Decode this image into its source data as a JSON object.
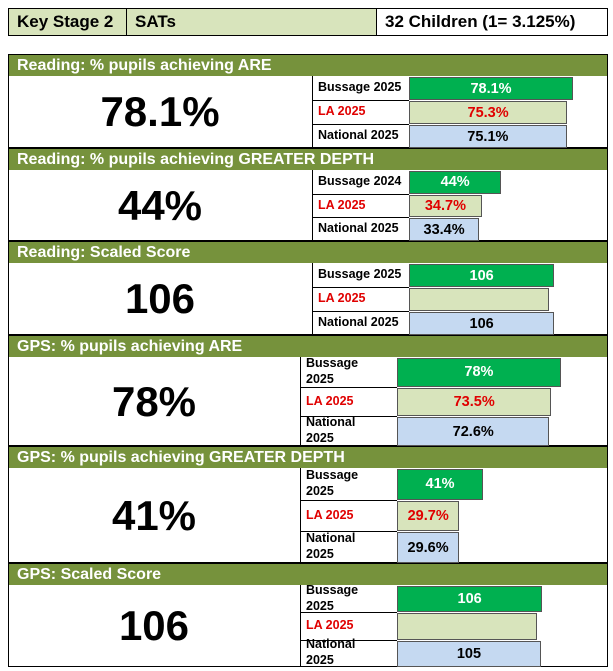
{
  "header": {
    "cells": [
      "Key Stage 2",
      "SATs",
      "32 Children (1= 3.125%)"
    ]
  },
  "sections": [
    {
      "title": "Reading: % pupils achieving ARE",
      "headline": "78.1%",
      "rows": [
        {
          "label": "Bussage 2025",
          "value": 78.1,
          "value_label": "78.1%"
        },
        {
          "label": "LA 2025",
          "value": 75.3,
          "value_label": "75.3%"
        },
        {
          "label": "National 2025",
          "value": 75.1,
          "value_label": "75.1%"
        }
      ]
    },
    {
      "title": "Reading: % pupils achieving GREATER DEPTH",
      "headline": "44%",
      "rows": [
        {
          "label": "Bussage 2024",
          "value": 44,
          "value_label": "44%"
        },
        {
          "label": "LA 2025",
          "value": 34.7,
          "value_label": "34.7%"
        },
        {
          "label": "National 2025",
          "value": 33.4,
          "value_label": "33.4%"
        }
      ]
    },
    {
      "title": "Reading: Scaled Score",
      "headline": "106",
      "rows": [
        {
          "label": "Bussage 2025",
          "value": 106
        },
        {
          "label": "LA 2025",
          "value": null
        },
        {
          "label": "National 2025",
          "value": 106
        }
      ]
    },
    {
      "title": "GPS: % pupils achieving ARE",
      "headline": "78%",
      "rows": [
        {
          "label": "Bussage 2025",
          "value": 78,
          "value_label": "78%"
        },
        {
          "label": "LA 2025",
          "value": 73.5,
          "value_label": "73.5%"
        },
        {
          "label": "National 2025",
          "value": 72.6,
          "value_label": "72.6%"
        }
      ]
    },
    {
      "title": "GPS: % pupils achieving GREATER DEPTH",
      "headline": "41%",
      "rows": [
        {
          "label": "Bussage 2025",
          "value": 41,
          "value_label": "41%"
        },
        {
          "label": "LA 2025",
          "value": 29.7,
          "value_label": "29.7%"
        },
        {
          "label": "National 2025",
          "value": 29.6,
          "value_label": "29.6%"
        }
      ]
    },
    {
      "title": "GPS: Scaled Score",
      "headline": "106",
      "rows": [
        {
          "label": "Bussage 2025",
          "value": 106
        },
        {
          "label": "LA 2025",
          "value": null
        },
        {
          "label": "National 2025",
          "value": 105
        }
      ]
    }
  ]
}
